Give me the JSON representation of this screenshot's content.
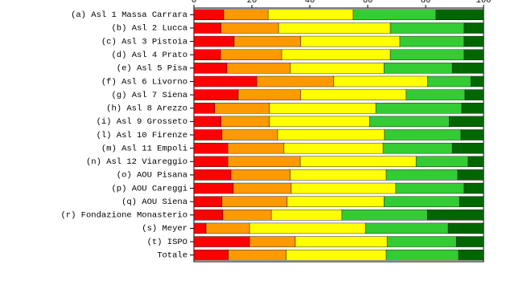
{
  "chart_data": {
    "type": "stacked-barh",
    "categories": [
      "(a) Asl 1 Massa Carrara",
      "(b) Asl 2 Lucca",
      "(c) Asl 3 Pistoia",
      "(d) Asl 4 Prato",
      "(e) Asl 5 Pisa",
      "(f) Asl 6 Livorno",
      "(g) Asl 7 Siena",
      "(h) Asl 8 Arezzo",
      "(i) Asl 9 Grosseto",
      "(l) Asl 10 Firenze",
      "(m) Asl 11 Empoli",
      "(n) Asl 12 Viareggio",
      "(o) AOU Pisana",
      "(p) AOU Careggi",
      "(q) AOU Siena",
      "(r) Fondazione Monasterio",
      "(s) Meyer",
      "(t) ISPO",
      "Totale"
    ],
    "series": [
      {
        "color": "#ff0000",
        "values": [
          10.3,
          9.4,
          13.9,
          9.2,
          11.4,
          21.7,
          15.3,
          7.2,
          9.4,
          9.7,
          11.7,
          11.7,
          12.8,
          13.6,
          9.7,
          10,
          4.2,
          19.2,
          11.9
        ]
      },
      {
        "color": "#ff9900",
        "values": [
          15.3,
          19.8,
          23,
          21.1,
          21.9,
          26.6,
          21.6,
          18.9,
          16.7,
          19.2,
          19.4,
          25,
          20.5,
          20,
          22.5,
          16.7,
          15,
          15.8,
          20
        ]
      },
      {
        "color": "#ffff00",
        "values": [
          29.4,
          38.6,
          34.2,
          37.5,
          32.3,
          32.3,
          36.4,
          36.7,
          34.5,
          36.9,
          34.2,
          40,
          33.1,
          36.1,
          33.4,
          24.4,
          40,
          31.7,
          34.5
        ]
      },
      {
        "color": "#33cc33",
        "values": [
          28.6,
          25.5,
          22.2,
          25.5,
          23.6,
          15,
          20.3,
          29.7,
          27.5,
          26.4,
          23.9,
          18,
          24.7,
          23.6,
          26.1,
          29.5,
          28.6,
          23.9,
          25
        ]
      },
      {
        "color": "#006600",
        "values": [
          16.4,
          6.7,
          6.7,
          6.7,
          10.8,
          4.4,
          6.4,
          7.5,
          11.9,
          7.8,
          10.8,
          5.3,
          8.9,
          6.7,
          8.3,
          19.4,
          12.2,
          9.4,
          8.6
        ]
      }
    ],
    "xlim": [
      0,
      100
    ],
    "xticks": [
      0,
      20,
      40,
      60,
      80,
      100
    ]
  }
}
